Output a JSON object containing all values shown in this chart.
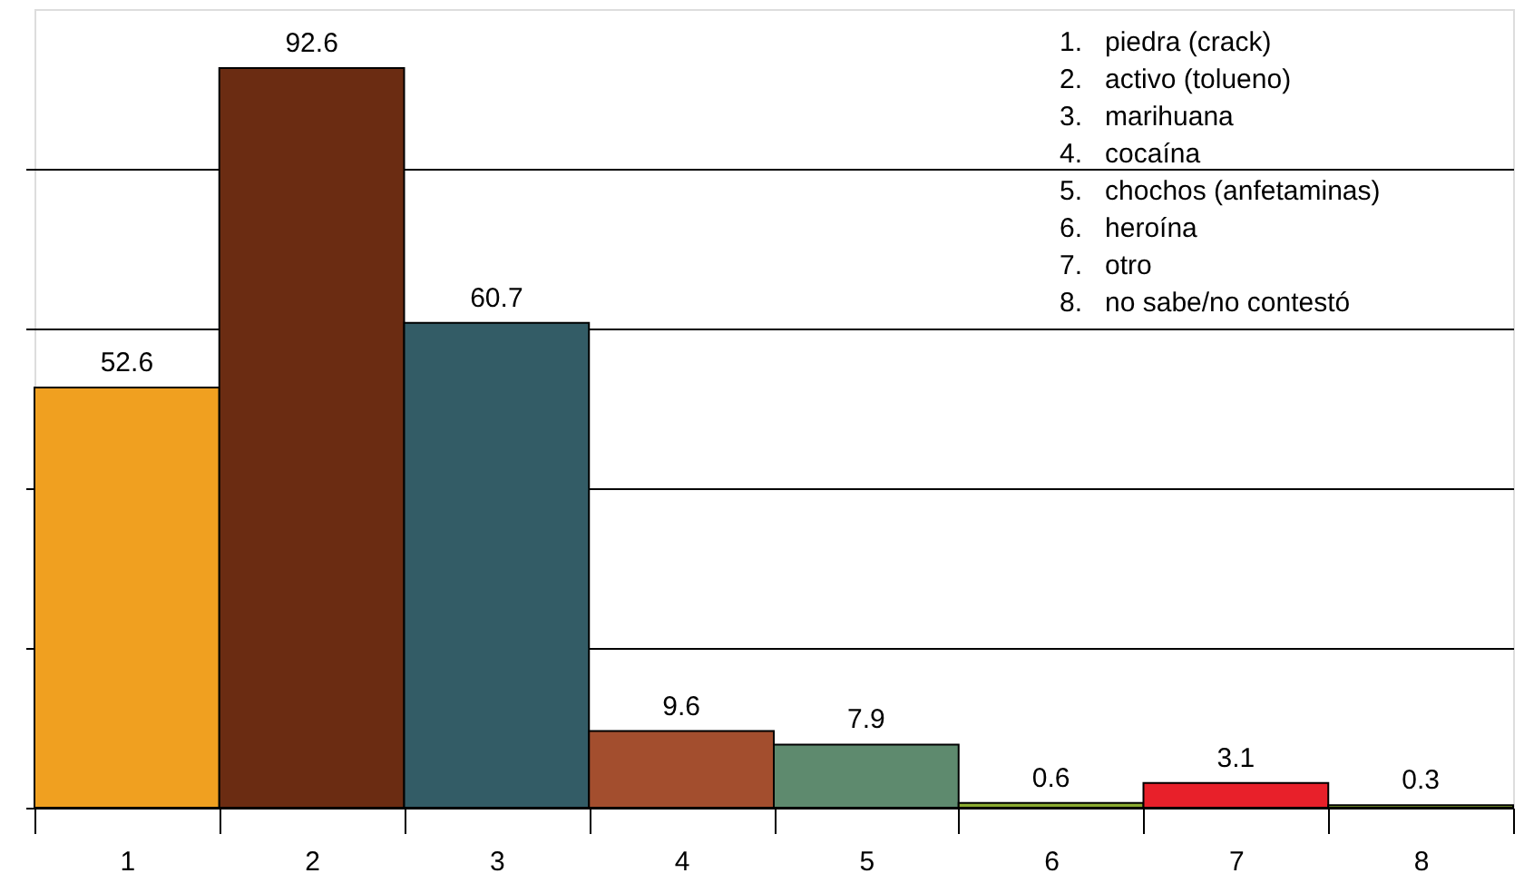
{
  "chart_data": {
    "type": "bar",
    "categories": [
      "1",
      "2",
      "3",
      "4",
      "5",
      "6",
      "7",
      "8"
    ],
    "values": [
      52.6,
      92.6,
      60.7,
      9.6,
      7.9,
      0.6,
      3.1,
      0.3
    ],
    "colors": [
      "#f0a020",
      "#6b2c12",
      "#335c66",
      "#a34e2e",
      "#5e8a6e",
      "#8aaa30",
      "#e8202a",
      "#8aaa30"
    ],
    "ylim": [
      0,
      100
    ],
    "yticks": [
      {
        "value": 0,
        "label": null
      },
      {
        "value": 20,
        "label": null
      },
      {
        "value": 40,
        "label": null
      },
      {
        "value": 60,
        "label": null
      },
      {
        "value": 80,
        "label": null
      }
    ],
    "tick_labels": "x",
    "grid": "y",
    "data_labels": true,
    "annotations": [
      "1.   piedra (crack)",
      "2.   activo (tolueno)",
      "3.   marihuana",
      "4.   cocaína",
      "5.   chochos (anfetaminas)",
      "6.   heroína",
      "7.   otro",
      "8.   no sabe/no contestó"
    ]
  }
}
